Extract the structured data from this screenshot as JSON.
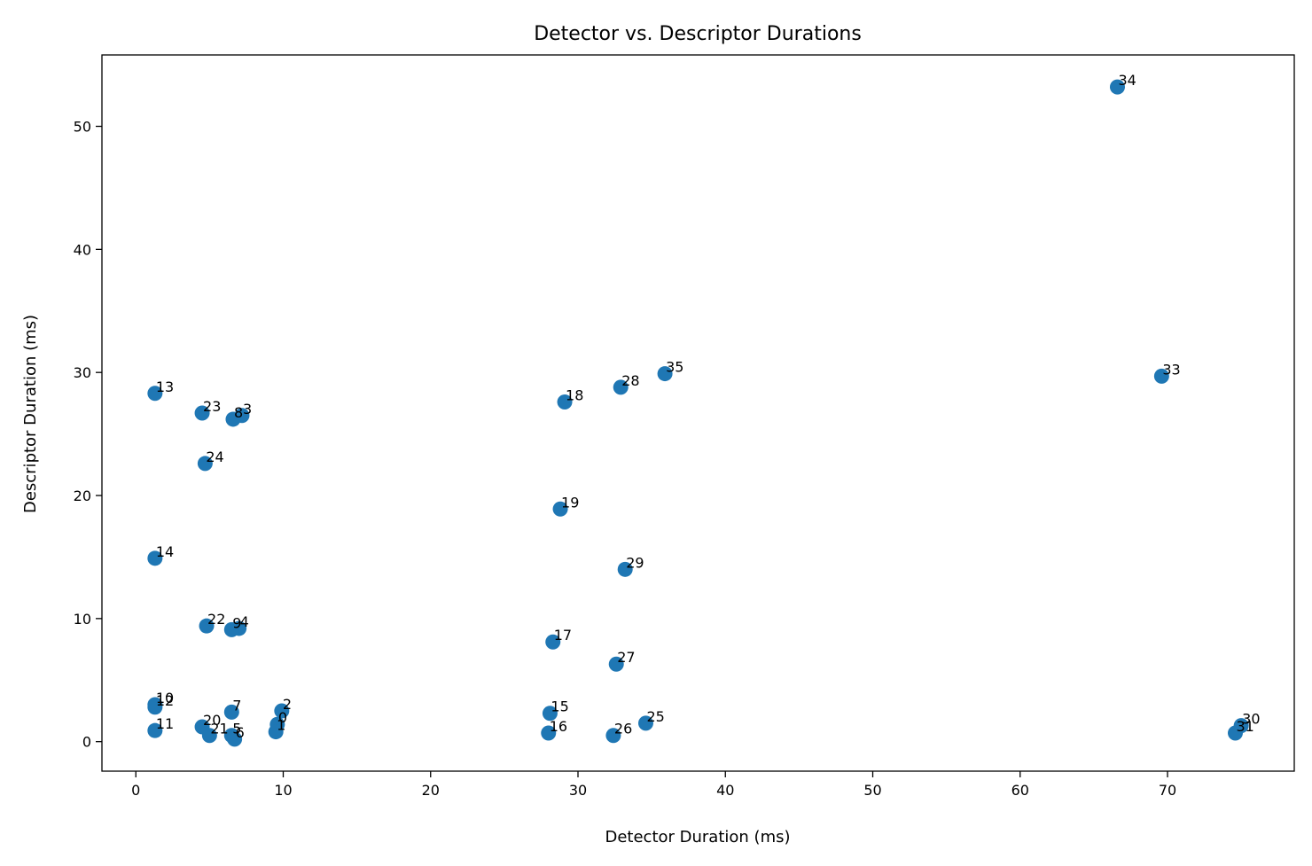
{
  "chart_data": {
    "type": "scatter",
    "title": "Detector vs. Descriptor Durations",
    "xlabel": "Detector Duration (ms)",
    "ylabel": "Descriptor Duration (ms)",
    "xlim": [
      -2.3,
      78.6
    ],
    "ylim": [
      -2.4,
      55.8
    ],
    "xticks": [
      0,
      10,
      20,
      30,
      40,
      50,
      60,
      70
    ],
    "yticks": [
      0,
      10,
      20,
      30,
      40,
      50
    ],
    "grid": false,
    "point_color": "#1f77b4",
    "points": [
      {
        "label": "0",
        "x": 9.6,
        "y": 1.4
      },
      {
        "label": "1",
        "x": 9.5,
        "y": 0.8
      },
      {
        "label": "2",
        "x": 9.9,
        "y": 2.5
      },
      {
        "label": "3",
        "x": 7.2,
        "y": 26.5
      },
      {
        "label": "4",
        "x": 7.0,
        "y": 9.2
      },
      {
        "label": "5",
        "x": 6.5,
        "y": 0.5
      },
      {
        "label": "6",
        "x": 6.7,
        "y": 0.2
      },
      {
        "label": "7",
        "x": 6.5,
        "y": 2.4
      },
      {
        "label": "8",
        "x": 6.6,
        "y": 26.2
      },
      {
        "label": "9",
        "x": 6.5,
        "y": 9.1
      },
      {
        "label": "10",
        "x": 1.3,
        "y": 3.0
      },
      {
        "label": "11",
        "x": 1.3,
        "y": 0.9
      },
      {
        "label": "12",
        "x": 1.3,
        "y": 2.8
      },
      {
        "label": "13",
        "x": 1.3,
        "y": 28.3
      },
      {
        "label": "14",
        "x": 1.3,
        "y": 14.9
      },
      {
        "label": "15",
        "x": 28.1,
        "y": 2.3
      },
      {
        "label": "16",
        "x": 28.0,
        "y": 0.7
      },
      {
        "label": "17",
        "x": 28.3,
        "y": 8.1
      },
      {
        "label": "18",
        "x": 29.1,
        "y": 27.6
      },
      {
        "label": "19",
        "x": 28.8,
        "y": 18.9
      },
      {
        "label": "20",
        "x": 4.5,
        "y": 1.2
      },
      {
        "label": "21",
        "x": 5.0,
        "y": 0.5
      },
      {
        "label": "22",
        "x": 4.8,
        "y": 9.4
      },
      {
        "label": "23",
        "x": 4.5,
        "y": 26.7
      },
      {
        "label": "24",
        "x": 4.7,
        "y": 22.6
      },
      {
        "label": "25",
        "x": 34.6,
        "y": 1.5
      },
      {
        "label": "26",
        "x": 32.4,
        "y": 0.5
      },
      {
        "label": "27",
        "x": 32.6,
        "y": 6.3
      },
      {
        "label": "28",
        "x": 32.9,
        "y": 28.8
      },
      {
        "label": "29",
        "x": 33.2,
        "y": 14.0
      },
      {
        "label": "30",
        "x": 75.0,
        "y": 1.3
      },
      {
        "label": "31",
        "x": 74.6,
        "y": 0.7
      },
      {
        "label": "33",
        "x": 69.6,
        "y": 29.7
      },
      {
        "label": "34",
        "x": 66.6,
        "y": 53.2
      },
      {
        "label": "35",
        "x": 35.9,
        "y": 29.9
      }
    ]
  }
}
